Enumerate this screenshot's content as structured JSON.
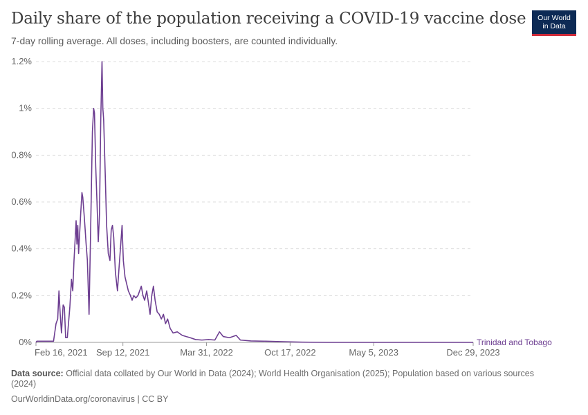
{
  "header": {
    "title": "Daily share of the population receiving a COVID-19 vaccine dose",
    "subtitle": "7-day rolling average. All doses, including boosters, are counted individually."
  },
  "logo": {
    "line1": "Our World",
    "line2": "in Data",
    "bg_color": "#0d2a55",
    "accent_color": "#cf2b3a"
  },
  "footer": {
    "source_label": "Data source:",
    "source_text": "Official data collated by Our World in Data (2024); World Health Organisation (2025); Population based on various sources (2024)",
    "url_text": "OurWorldinData.org/coronavirus | CC BY"
  },
  "chart_data": {
    "type": "line",
    "x_axis_type": "date",
    "xlim": [
      "2021-02-16",
      "2023-12-29"
    ],
    "ylim": [
      0,
      1.2
    ],
    "y_ticks": [
      0,
      0.2,
      0.4,
      0.6,
      0.8,
      1,
      1.2
    ],
    "y_tick_labels": [
      "0%",
      "0.2%",
      "0.4%",
      "0.6%",
      "0.8%",
      "1%",
      "1.2%"
    ],
    "x_ticks": [
      "2021-02-16",
      "2021-09-12",
      "2022-03-31",
      "2022-10-17",
      "2023-05-05",
      "2023-12-29"
    ],
    "x_tick_labels": [
      "Feb 16, 2021",
      "Sep 12, 2021",
      "Mar 31, 2022",
      "Oct 17, 2022",
      "May 5, 2023",
      "Dec 29, 2023"
    ],
    "grid": true,
    "series": [
      {
        "name": "Trinidad and Tobago",
        "color": "#6d3e91",
        "points": [
          [
            "2021-02-16",
            0.0
          ],
          [
            "2021-02-18",
            0.005
          ],
          [
            "2021-03-30",
            0.005
          ],
          [
            "2021-04-05",
            0.08
          ],
          [
            "2021-04-09",
            0.1
          ],
          [
            "2021-04-12",
            0.22
          ],
          [
            "2021-04-15",
            0.12
          ],
          [
            "2021-04-18",
            0.04
          ],
          [
            "2021-04-22",
            0.16
          ],
          [
            "2021-04-25",
            0.15
          ],
          [
            "2021-04-28",
            0.02
          ],
          [
            "2021-05-02",
            0.02
          ],
          [
            "2021-05-08",
            0.15
          ],
          [
            "2021-05-12",
            0.27
          ],
          [
            "2021-05-15",
            0.22
          ],
          [
            "2021-05-18",
            0.35
          ],
          [
            "2021-05-21",
            0.45
          ],
          [
            "2021-05-23",
            0.52
          ],
          [
            "2021-05-25",
            0.42
          ],
          [
            "2021-05-27",
            0.5
          ],
          [
            "2021-05-29",
            0.38
          ],
          [
            "2021-06-03",
            0.55
          ],
          [
            "2021-06-06",
            0.64
          ],
          [
            "2021-06-08",
            0.62
          ],
          [
            "2021-06-11",
            0.55
          ],
          [
            "2021-06-13",
            0.5
          ],
          [
            "2021-06-16",
            0.42
          ],
          [
            "2021-06-19",
            0.35
          ],
          [
            "2021-06-23",
            0.12
          ],
          [
            "2021-06-27",
            0.5
          ],
          [
            "2021-07-01",
            0.9
          ],
          [
            "2021-07-04",
            1.0
          ],
          [
            "2021-07-06",
            0.98
          ],
          [
            "2021-07-09",
            0.75
          ],
          [
            "2021-07-12",
            0.6
          ],
          [
            "2021-07-15",
            0.43
          ],
          [
            "2021-07-18",
            0.55
          ],
          [
            "2021-07-21",
            0.95
          ],
          [
            "2021-07-24",
            1.2
          ],
          [
            "2021-07-26",
            1.0
          ],
          [
            "2021-07-28",
            0.95
          ],
          [
            "2021-08-01",
            0.7
          ],
          [
            "2021-08-04",
            0.5
          ],
          [
            "2021-08-08",
            0.38
          ],
          [
            "2021-08-12",
            0.35
          ],
          [
            "2021-08-15",
            0.48
          ],
          [
            "2021-08-18",
            0.5
          ],
          [
            "2021-08-21",
            0.45
          ],
          [
            "2021-08-25",
            0.3
          ],
          [
            "2021-08-30",
            0.22
          ],
          [
            "2021-09-02",
            0.3
          ],
          [
            "2021-09-06",
            0.4
          ],
          [
            "2021-09-10",
            0.5
          ],
          [
            "2021-09-13",
            0.35
          ],
          [
            "2021-09-17",
            0.28
          ],
          [
            "2021-09-21",
            0.25
          ],
          [
            "2021-09-25",
            0.22
          ],
          [
            "2021-09-30",
            0.2
          ],
          [
            "2021-10-04",
            0.18
          ],
          [
            "2021-10-08",
            0.2
          ],
          [
            "2021-10-13",
            0.19
          ],
          [
            "2021-10-18",
            0.2
          ],
          [
            "2021-10-22",
            0.22
          ],
          [
            "2021-10-26",
            0.24
          ],
          [
            "2021-10-30",
            0.2
          ],
          [
            "2021-11-03",
            0.18
          ],
          [
            "2021-11-08",
            0.22
          ],
          [
            "2021-11-12",
            0.17
          ],
          [
            "2021-11-16",
            0.12
          ],
          [
            "2021-11-20",
            0.2
          ],
          [
            "2021-11-24",
            0.24
          ],
          [
            "2021-11-28",
            0.18
          ],
          [
            "2021-12-03",
            0.13
          ],
          [
            "2021-12-08",
            0.12
          ],
          [
            "2021-12-13",
            0.1
          ],
          [
            "2021-12-18",
            0.12
          ],
          [
            "2021-12-23",
            0.08
          ],
          [
            "2021-12-28",
            0.1
          ],
          [
            "2022-01-03",
            0.06
          ],
          [
            "2022-01-10",
            0.04
          ],
          [
            "2022-01-20",
            0.045
          ],
          [
            "2022-02-01",
            0.03
          ],
          [
            "2022-02-10",
            0.025
          ],
          [
            "2022-02-20",
            0.02
          ],
          [
            "2022-03-05",
            0.012
          ],
          [
            "2022-03-20",
            0.01
          ],
          [
            "2022-04-05",
            0.012
          ],
          [
            "2022-04-20",
            0.01
          ],
          [
            "2022-05-01",
            0.045
          ],
          [
            "2022-05-10",
            0.025
          ],
          [
            "2022-05-25",
            0.02
          ],
          [
            "2022-06-10",
            0.03
          ],
          [
            "2022-06-20",
            0.01
          ],
          [
            "2022-07-15",
            0.006
          ],
          [
            "2022-08-20",
            0.005
          ],
          [
            "2022-10-01",
            0.003
          ],
          [
            "2022-11-15",
            0.001
          ],
          [
            "2023-01-15",
            0.0
          ],
          [
            "2023-12-29",
            0.0
          ]
        ]
      }
    ]
  }
}
